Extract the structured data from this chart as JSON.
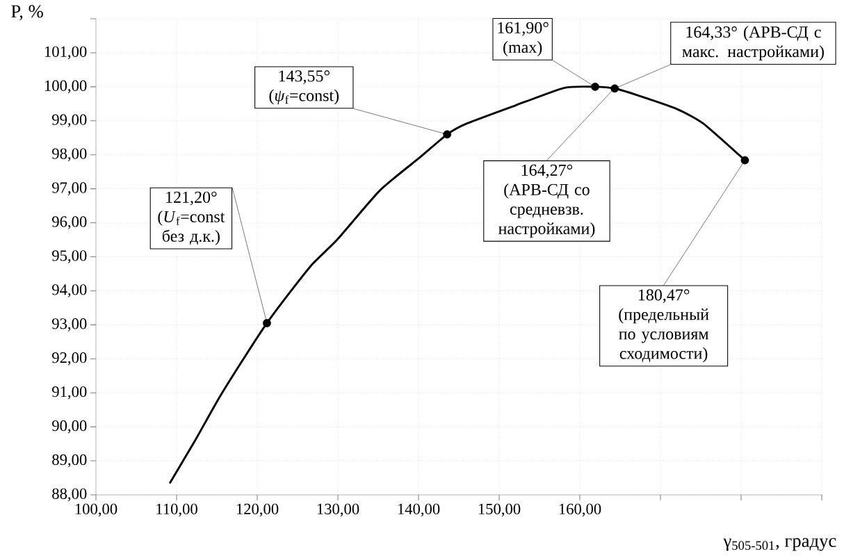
{
  "chart_data": {
    "type": "line",
    "xlabel": "γ$_{505-501}$, градус",
    "ylabel": "P, %",
    "xlim": [
      100,
      190
    ],
    "xticks": [
      {
        "value": 100,
        "label": "100,00"
      },
      {
        "value": 110,
        "label": "110,00"
      },
      {
        "value": 120,
        "label": "120,00"
      },
      {
        "value": 130,
        "label": "130,00"
      },
      {
        "value": 140,
        "label": "140,00"
      },
      {
        "value": 150,
        "label": "150,00"
      },
      {
        "value": 160,
        "label": "160,00"
      },
      {
        "value": 170,
        "label": null
      },
      {
        "value": 180,
        "label": null
      },
      {
        "value": 190,
        "label": null
      }
    ],
    "ylim": [
      88,
      102
    ],
    "yticks": [
      {
        "value": 88,
        "label": "88,00"
      },
      {
        "value": 89,
        "label": "89,00"
      },
      {
        "value": 90,
        "label": "90,00"
      },
      {
        "value": 91,
        "label": "91,00"
      },
      {
        "value": 92,
        "label": "92,00"
      },
      {
        "value": 93,
        "label": "93,00"
      },
      {
        "value": 94,
        "label": "94,00"
      },
      {
        "value": 95,
        "label": "95,00"
      },
      {
        "value": 96,
        "label": "96,00"
      },
      {
        "value": 97,
        "label": "97,00"
      },
      {
        "value": 98,
        "label": "98,00"
      },
      {
        "value": 99,
        "label": "99,00"
      },
      {
        "value": 100,
        "label": "100,00"
      },
      {
        "value": 101,
        "label": "101,00"
      },
      {
        "value": 102,
        "label": null
      }
    ],
    "grid": true,
    "series": [
      {
        "color": "#000000",
        "marker": "none",
        "x": [
          109.2,
          112.3,
          115.3,
          118.3,
          121.2,
          124.2,
          126.9,
          129.9,
          135.2,
          140.2,
          143.55,
          146.0,
          152.0,
          158.1,
          161.9,
          164.33,
          166.9,
          171.9,
          175.3,
          180.47
        ],
        "values": [
          88.36,
          89.6,
          90.86,
          92.0,
          93.05,
          94.0,
          94.8,
          95.5,
          96.95,
          97.93,
          98.6,
          98.92,
          99.45,
          99.97,
          100.0,
          99.95,
          99.77,
          99.36,
          98.92,
          97.84
        ]
      },
      {
        "type": "scatter",
        "color": "#000000",
        "marker": "circle",
        "x": [
          121.2,
          143.55,
          161.9,
          164.33,
          180.47
        ],
        "values": [
          93.05,
          98.6,
          100.0,
          99.95,
          97.84
        ]
      }
    ],
    "annotations": [
      {
        "text": "121,20° (*U*$_{f}$=const без д.к.)",
        "x": 121.2,
        "y": 93.05
      },
      {
        "text": "143,55° (*ψ*$_{f}$=const)",
        "x": 143.55,
        "y": 98.6
      },
      {
        "text": "161,90° (max)",
        "x": 161.9,
        "y": 100.0
      },
      {
        "text": "164,33° (АРВ-СД с макс. настройками)",
        "x": 164.33,
        "y": 99.95
      },
      {
        "text": "164,27° (АРВ-СД со средневзв. настройками)",
        "x": 164.27,
        "y": 99.95
      },
      {
        "text": "180,47° (предельный по условиям сходимости)",
        "x": 180.47,
        "y": 97.84
      }
    ]
  }
}
